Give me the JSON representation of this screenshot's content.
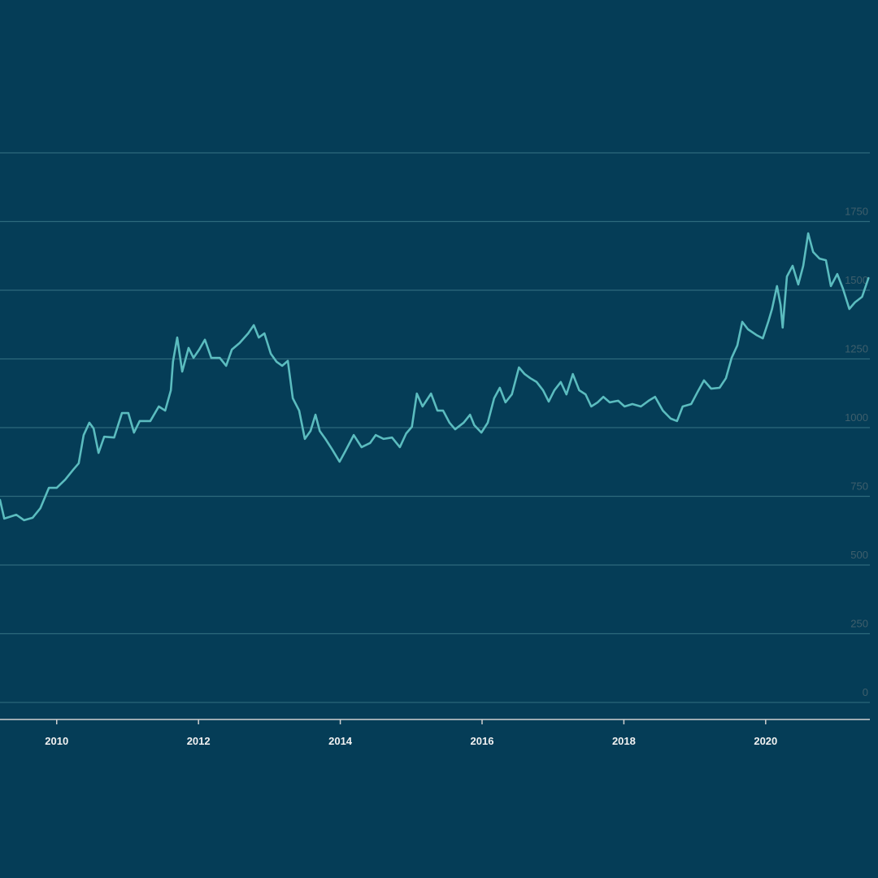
{
  "chart_data": {
    "type": "line",
    "x": [
      2009.2,
      2009.26,
      2009.43,
      2009.54,
      2009.66,
      2009.77,
      2009.89,
      2010.0,
      2010.12,
      2010.23,
      2010.31,
      2010.38,
      2010.46,
      2010.52,
      2010.59,
      2010.67,
      2010.81,
      2010.92,
      2011.01,
      2011.09,
      2011.17,
      2011.32,
      2011.44,
      2011.53,
      2011.61,
      2011.64,
      2011.7,
      2011.77,
      2011.86,
      2011.93,
      2012.01,
      2012.09,
      2012.18,
      2012.3,
      2012.39,
      2012.47,
      2012.58,
      2012.7,
      2012.78,
      2012.85,
      2012.93,
      2013.02,
      2013.1,
      2013.18,
      2013.26,
      2013.33,
      2013.42,
      2013.5,
      2013.58,
      2013.65,
      2013.71,
      2013.79,
      2013.88,
      2013.99,
      2014.07,
      2014.19,
      2014.3,
      2014.42,
      2014.5,
      2014.61,
      2014.73,
      2014.84,
      2014.93,
      2015.01,
      2015.08,
      2015.16,
      2015.28,
      2015.37,
      2015.45,
      2015.54,
      2015.62,
      2015.74,
      2015.83,
      2015.89,
      2015.99,
      2016.08,
      2016.17,
      2016.25,
      2016.33,
      2016.42,
      2016.52,
      2016.6,
      2016.68,
      2016.77,
      2016.86,
      2016.94,
      2017.02,
      2017.11,
      2017.19,
      2017.28,
      2017.37,
      2017.46,
      2017.54,
      2017.63,
      2017.71,
      2017.8,
      2017.92,
      2018.01,
      2018.12,
      2018.24,
      2018.35,
      2018.44,
      2018.55,
      2018.66,
      2018.75,
      2018.83,
      2018.95,
      2019.04,
      2019.13,
      2019.23,
      2019.35,
      2019.44,
      2019.52,
      2019.6,
      2019.67,
      2019.75,
      2019.87,
      2019.96,
      2020.04,
      2020.09,
      2020.16,
      2020.21,
      2020.24,
      2020.3,
      2020.38,
      2020.46,
      2020.53,
      2020.6,
      2020.67,
      2020.76,
      2020.85,
      2020.92,
      2021.01,
      2021.09,
      2021.18,
      2021.26,
      2021.36,
      2021.45
    ],
    "series": [
      {
        "color": "#5bbcbf",
        "values": [
          737,
          669,
          683,
          663,
          672,
          707,
          781,
          781,
          811,
          846,
          870,
          973,
          1018,
          997,
          908,
          967,
          964,
          1053,
          1053,
          982,
          1024,
          1024,
          1077,
          1062,
          1136,
          1240,
          1328,
          1204,
          1290,
          1254,
          1284,
          1320,
          1254,
          1254,
          1225,
          1284,
          1308,
          1343,
          1373,
          1328,
          1343,
          1269,
          1240,
          1225,
          1243,
          1107,
          1062,
          959,
          988,
          1047,
          988,
          959,
          923,
          876,
          914,
          973,
          929,
          944,
          973,
          959,
          964,
          929,
          979,
          1003,
          1124,
          1077,
          1124,
          1062,
          1062,
          1018,
          994,
          1018,
          1047,
          1009,
          982,
          1018,
          1107,
          1145,
          1092,
          1121,
          1219,
          1195,
          1180,
          1166,
          1136,
          1095,
          1136,
          1166,
          1121,
          1195,
          1136,
          1121,
          1077,
          1092,
          1112,
          1092,
          1098,
          1077,
          1086,
          1077,
          1098,
          1112,
          1062,
          1033,
          1024,
          1077,
          1086,
          1130,
          1172,
          1142,
          1145,
          1180,
          1254,
          1299,
          1385,
          1358,
          1337,
          1325,
          1388,
          1432,
          1515,
          1447,
          1364,
          1550,
          1589,
          1521,
          1589,
          1707,
          1639,
          1615,
          1609,
          1515,
          1559,
          1506,
          1432,
          1456,
          1476,
          1544
        ]
      }
    ],
    "xlim": [
      2009.2,
      2021.47
    ],
    "xticks": [
      2010,
      2012,
      2014,
      2016,
      2018,
      2020
    ],
    "ylim": [
      -62,
      2000
    ],
    "yticks": [
      0,
      250,
      500,
      750,
      1000,
      1250,
      1500,
      1750,
      {
        "value": 2000,
        "label": null
      }
    ],
    "grid": true
  }
}
